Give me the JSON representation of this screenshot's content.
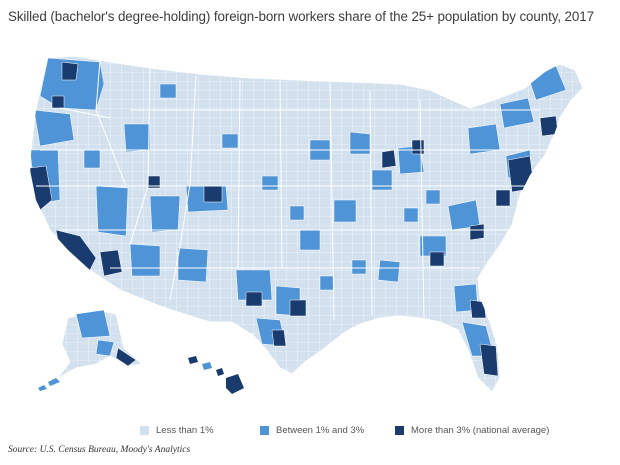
{
  "title": "Skilled (bachelor's degree-holding) foreign-born workers share of the 25+ population by county, 2017",
  "legend": [
    {
      "label": "Less than 1%",
      "color": "#d3e1ef"
    },
    {
      "label": "Between 1% and 3%",
      "color": "#4f94d6"
    },
    {
      "label": "More than 3% (national average)",
      "color": "#1a3b6e"
    }
  ],
  "source": "Source: U.S. Census Bureau, Moody's Analytics",
  "colors": {
    "low": "#d3e1ef",
    "mid": "#4f94d6",
    "high": "#1a3b6e",
    "border": "#ffffff"
  }
}
